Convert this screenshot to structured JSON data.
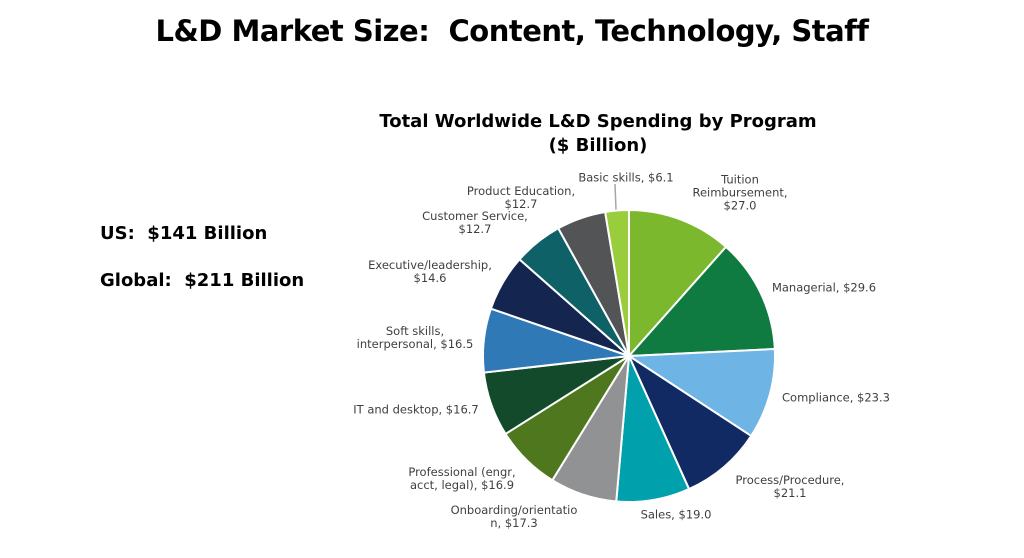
{
  "page": {
    "title": "L&D Market Size:  Content, Technology, Staff",
    "us_total": "US:  $141 Billion",
    "global_total": "Global:  $211 Billion"
  },
  "chart_data": {
    "type": "pie",
    "title": "Total Worldwide L&D Spending by Program",
    "subtitle": "($ Billion)",
    "unit": "$ Billion",
    "start_angle_deg": 0,
    "direction": "clockwise",
    "slices": [
      {
        "id": "tuition-reimbursement",
        "label": "Tuition Reimbursement",
        "value": 27.0,
        "color": "#7CB82E",
        "display_label": "Tuition\nReimbursement,\n$27.0"
      },
      {
        "id": "managerial",
        "label": "Managerial",
        "value": 29.6,
        "color": "#0F7B40",
        "display_label": "Managerial, $29.6"
      },
      {
        "id": "compliance",
        "label": "Compliance",
        "value": 23.3,
        "color": "#6EB4E4",
        "display_label": "Compliance, $23.3"
      },
      {
        "id": "process-procedure",
        "label": "Process/Procedure",
        "value": 21.1,
        "color": "#112A64",
        "display_label": "Process/Procedure,\n$21.1"
      },
      {
        "id": "sales",
        "label": "Sales",
        "value": 19.0,
        "color": "#00A1AC",
        "display_label": "Sales, $19.0"
      },
      {
        "id": "onboarding-orientation",
        "label": "Onboarding/orientation",
        "value": 17.3,
        "color": "#909293",
        "display_label": "Onboarding/orientatio\nn, $17.3"
      },
      {
        "id": "professional",
        "label": "Professional (engr, acct, legal)",
        "value": 16.9,
        "color": "#4F771E",
        "display_label": "Professional (engr,\nacct, legal), $16.9"
      },
      {
        "id": "it-desktop",
        "label": "IT and desktop",
        "value": 16.7,
        "color": "#134A2B",
        "display_label": "IT and desktop, $16.7"
      },
      {
        "id": "soft-skills",
        "label": "Soft skills, interpersonal",
        "value": 16.5,
        "color": "#2F79B7",
        "display_label": "Soft skills,\ninterpersonal, $16.5"
      },
      {
        "id": "executive-leadership",
        "label": "Executive/leadership",
        "value": 14.6,
        "color": "#14254F",
        "display_label": "Executive/leadership,\n$14.6"
      },
      {
        "id": "customer-service",
        "label": "Customer Service",
        "value": 12.7,
        "color": "#0F6168",
        "display_label": "Customer Service,\n$12.7"
      },
      {
        "id": "product-education",
        "label": "Product Education",
        "value": 12.7,
        "color": "#525456",
        "display_label": "Product Education,\n$12.7"
      },
      {
        "id": "basic-skills",
        "label": "Basic skills",
        "value": 6.1,
        "color": "#9ACD3B",
        "display_label": "Basic skills, $6.1"
      }
    ]
  }
}
